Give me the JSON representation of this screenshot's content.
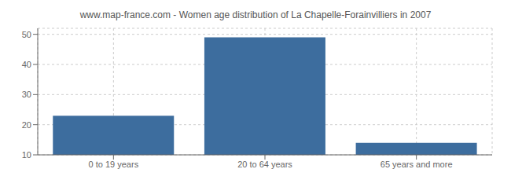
{
  "chart_data": {
    "type": "bar",
    "title": "www.map-france.com - Women age distribution of La Chapelle-Forainvilliers in 2007",
    "categories": [
      "0 to 19 years",
      "20 to 64 years",
      "65 years and more"
    ],
    "values": [
      23,
      49,
      14
    ],
    "color": "#3d6d9e",
    "ylim": [
      10,
      52
    ],
    "yticks": [
      10,
      20,
      30,
      40,
      50
    ],
    "grid": true
  }
}
